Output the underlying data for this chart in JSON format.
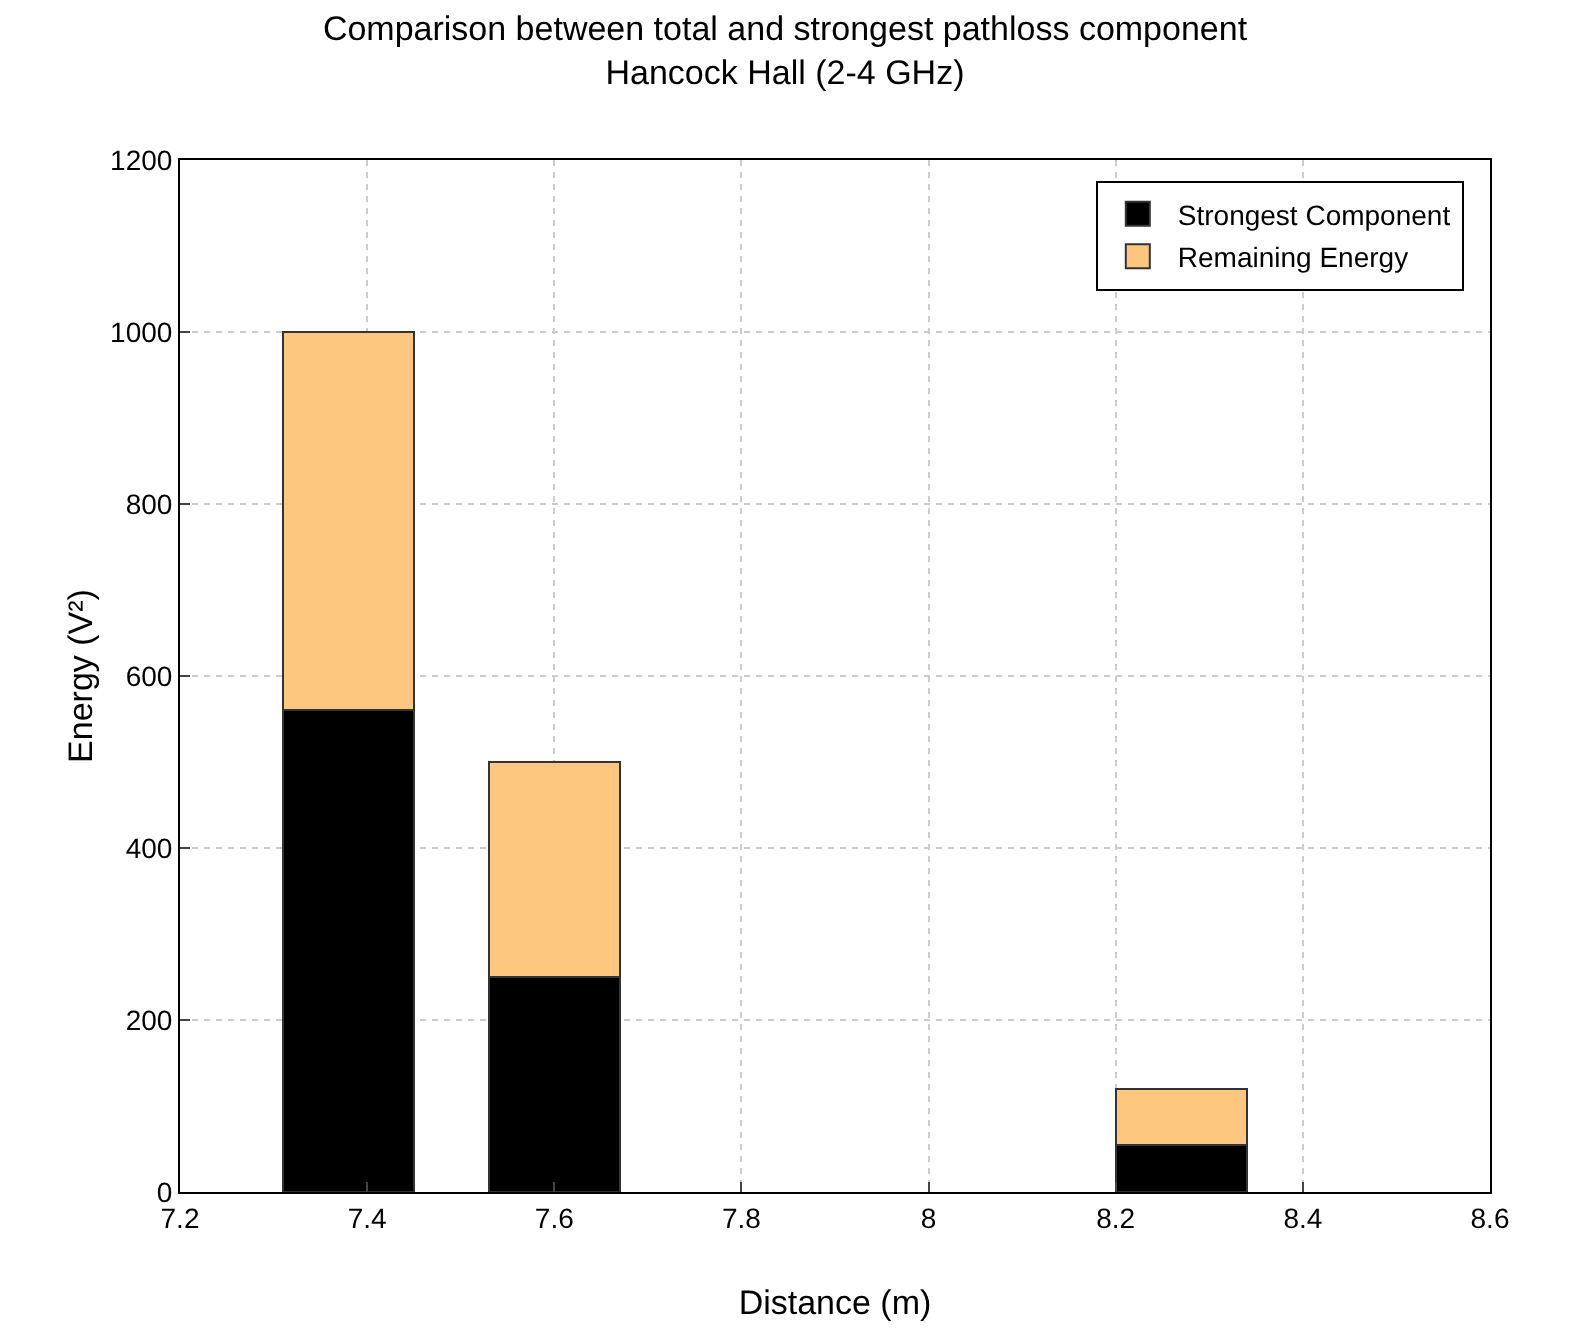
{
  "chart_data": {
    "type": "bar",
    "stacked": true,
    "title": "Comparison between total and strongest pathloss component\nHancock Hall (2-4 GHz)",
    "xlabel": "Distance (m)",
    "ylabel": "Energy (V²)",
    "x": [
      7.38,
      7.6,
      8.27
    ],
    "series": [
      {
        "name": "Strongest Component",
        "color": "#000000",
        "values": [
          560,
          250,
          55
        ]
      },
      {
        "name": "Remaining Energy",
        "color": "#fdc77f",
        "values": [
          440,
          250,
          65
        ]
      }
    ],
    "xlim": [
      7.2,
      8.6
    ],
    "xticks": [
      7.2,
      7.4,
      7.6,
      7.8,
      8,
      8.2,
      8.4,
      8.6
    ],
    "ylim": [
      0,
      1200
    ],
    "yticks": [
      0,
      200,
      400,
      600,
      800,
      1000,
      1200
    ],
    "grid": true,
    "legend": "top right"
  }
}
